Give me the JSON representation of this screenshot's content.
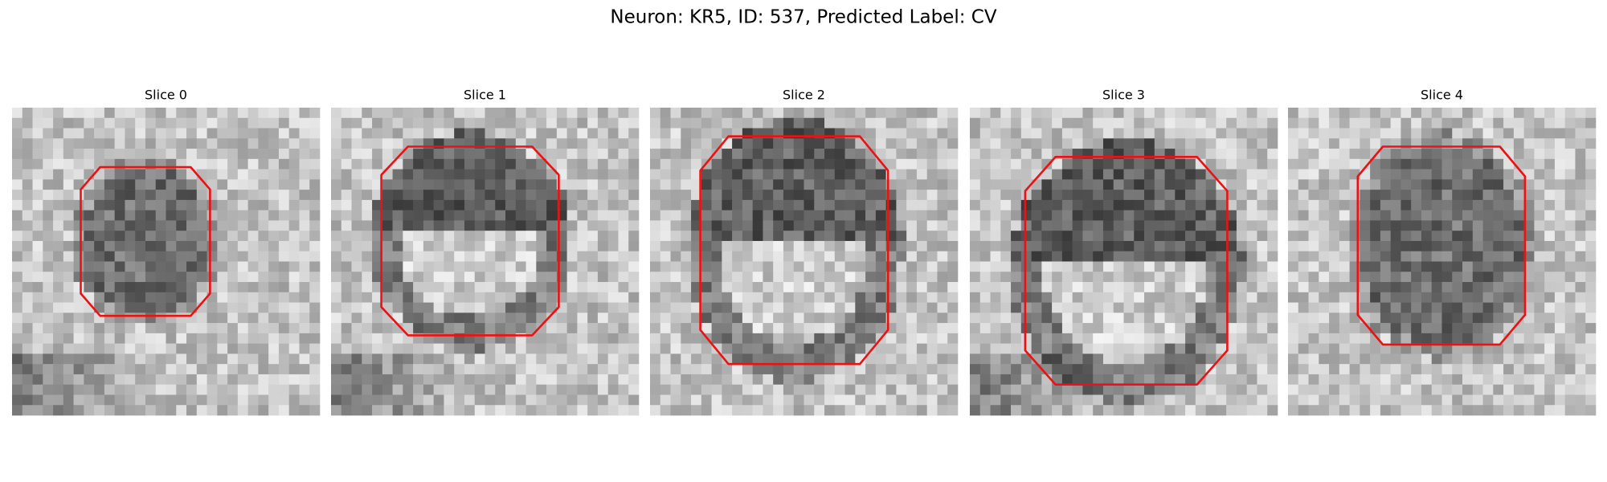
{
  "title": "Neuron: KR5, ID: 537, Predicted Label: CV",
  "panels": [
    {
      "title": "Slice 0"
    },
    {
      "title": "Slice 1"
    },
    {
      "title": "Slice 2"
    },
    {
      "title": "Slice 3"
    },
    {
      "title": "Slice 4"
    }
  ]
}
